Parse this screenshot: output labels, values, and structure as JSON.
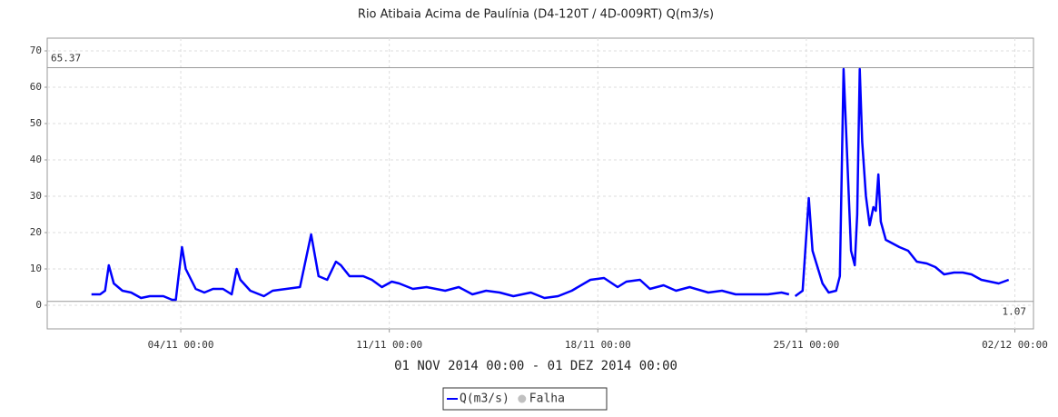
{
  "chart_data": {
    "type": "line",
    "title": "Rio Atibaia Acima de Paulínia (D4-120T / 4D-009RT) Q(m3/s)",
    "subtitle": "01 NOV 2014 00:00 - 01 DEZ 2014 00:00",
    "x": [
      "2014-11-01T00:00",
      "2014-11-01T07:00",
      "2014-11-01T11:00",
      "2014-11-01T14:00",
      "2014-11-01T18:00",
      "2014-11-02T01:00",
      "2014-11-02T08:00",
      "2014-11-02T16:00",
      "2014-11-02T23:00",
      "2014-11-03T10:00",
      "2014-11-03T17:00",
      "2014-11-03T20:00",
      "2014-11-04T01:00",
      "2014-11-04T04:00",
      "2014-11-04T12:00",
      "2014-11-04T19:00",
      "2014-11-05T02:00",
      "2014-11-05T10:00",
      "2014-11-05T17:00",
      "2014-11-05T21:00",
      "2014-11-06T00:00",
      "2014-11-06T08:00",
      "2014-11-06T19:00",
      "2014-11-07T02:00",
      "2014-11-07T13:00",
      "2014-11-08T00:00",
      "2014-11-08T09:00",
      "2014-11-08T15:00",
      "2014-11-08T22:00",
      "2014-11-09T05:00",
      "2014-11-09T09:00",
      "2014-11-09T16:00",
      "2014-11-10T03:00",
      "2014-11-10T10:00",
      "2014-11-10T18:00",
      "2014-11-11T02:00",
      "2014-11-11T08:00",
      "2014-11-11T19:00",
      "2014-11-12T06:00",
      "2014-11-12T21:00",
      "2014-11-13T08:00",
      "2014-11-13T19:00",
      "2014-11-14T06:00",
      "2014-11-14T17:00",
      "2014-11-15T04:00",
      "2014-11-15T18:00",
      "2014-11-16T05:00",
      "2014-11-16T16:00",
      "2014-11-17T03:00",
      "2014-11-17T18:00",
      "2014-11-18T05:00",
      "2014-11-18T16:00",
      "2014-11-18T23:00",
      "2014-11-19T10:00",
      "2014-11-19T18:00",
      "2014-11-20T05:00",
      "2014-11-20T15:00",
      "2014-11-21T02:00",
      "2014-11-21T17:00",
      "2014-11-22T04:00",
      "2014-11-22T15:00",
      "2014-11-23T02:00",
      "2014-11-23T17:00",
      "2014-11-24T04:00",
      "2014-11-24T10:00",
      "2014-11-24T13:00",
      "2014-11-24T15:00",
      "2014-11-24T21:00",
      "2014-11-25T02:00",
      "2014-11-25T05:00",
      "2014-11-25T13:00",
      "2014-11-25T18:00",
      "2014-11-26T00:00",
      "2014-11-26T03:00",
      "2014-11-26T06:00",
      "2014-11-26T09:00",
      "2014-11-26T12:00",
      "2014-11-26T15:00",
      "2014-11-26T17:00",
      "2014-11-26T19:00",
      "2014-11-26T21:00",
      "2014-11-27T00:00",
      "2014-11-27T03:00",
      "2014-11-27T06:00",
      "2014-11-27T08:00",
      "2014-11-27T10:00",
      "2014-11-27T12:00",
      "2014-11-27T16:00",
      "2014-11-28T03:00",
      "2014-11-28T10:00",
      "2014-11-28T17:00",
      "2014-11-29T01:00",
      "2014-11-29T08:00",
      "2014-11-29T15:00",
      "2014-11-29T23:00",
      "2014-11-30T06:00",
      "2014-11-30T13:00",
      "2014-11-30T21:00",
      "2014-12-01T04:00",
      "2014-12-01T11:00",
      "2014-12-01T19:00"
    ],
    "series": [
      {
        "name": "Q(m3/s)",
        "color": "#0000ff",
        "values": [
          3,
          3,
          4,
          11,
          6,
          4,
          3.5,
          2,
          2.5,
          2.5,
          1.5,
          1.5,
          16,
          10,
          4.5,
          3.5,
          4.5,
          4.5,
          3,
          10,
          7,
          4,
          2.5,
          4,
          4.5,
          5,
          19.5,
          8,
          7,
          12,
          11,
          8,
          8,
          7,
          5,
          6.5,
          6,
          4.5,
          5,
          4,
          5,
          3,
          4,
          3.5,
          2.5,
          3.5,
          2,
          2.5,
          4,
          7,
          7.5,
          5,
          6.5,
          7,
          4.5,
          5.5,
          4,
          5,
          3.5,
          4,
          3,
          3,
          3,
          3.5,
          3,
          null,
          2.5,
          4,
          29.5,
          15,
          6,
          3.5,
          4,
          8,
          65,
          40,
          15,
          11,
          25,
          65,
          45,
          30,
          22,
          27,
          26,
          36,
          23,
          18,
          16,
          15,
          12,
          11.5,
          10.5,
          8.5,
          9,
          9,
          8.5,
          7,
          6.5,
          6,
          7
        ]
      }
    ],
    "markers": [
      {
        "name": "Falha",
        "color": "#c0c0c0"
      }
    ],
    "reference_lines": [
      65.37,
      1.07
    ],
    "xlim": [
      "2014-10-30T12:24",
      "2014-12-02T15:00"
    ],
    "xticks": [
      {
        "value": "2014-11-04T00:00",
        "label": "04/11 00:00"
      },
      {
        "value": "2014-11-11T00:00",
        "label": "11/11 00:00"
      },
      {
        "value": "2014-11-18T00:00",
        "label": "18/11 00:00"
      },
      {
        "value": "2014-11-25T00:00",
        "label": "25/11 00:00"
      },
      {
        "value": "2014-12-02T00:00",
        "label": "02/12 00:00"
      }
    ],
    "ylim": [
      -6.5,
      73.5
    ],
    "yticks": [
      0,
      10,
      20,
      30,
      40,
      50,
      60,
      70
    ],
    "grid": true
  }
}
